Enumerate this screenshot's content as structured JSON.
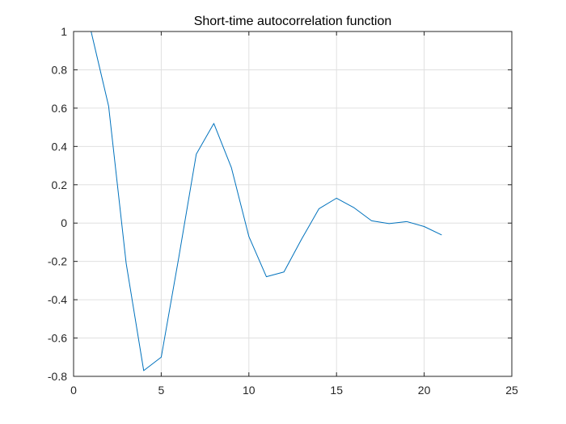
{
  "chart_data": {
    "type": "line",
    "title": "Short-time autocorrelation function",
    "xlabel": "",
    "ylabel": "",
    "xlim": [
      0,
      25
    ],
    "ylim": [
      -0.8,
      1
    ],
    "xticks": [
      0,
      5,
      10,
      15,
      20,
      25
    ],
    "xtick_labels": [
      "0",
      "5",
      "10",
      "15",
      "20",
      "25"
    ],
    "yticks": [
      -0.8,
      -0.6,
      -0.4,
      -0.2,
      0,
      0.2,
      0.4,
      0.6,
      0.8,
      1
    ],
    "ytick_labels": [
      "-0.8",
      "-0.6",
      "-0.4",
      "-0.2",
      "0",
      "0.2",
      "0.4",
      "0.6",
      "0.8",
      "1"
    ],
    "grid": true,
    "box": true,
    "series": [
      {
        "color": "#0072BD",
        "x": [
          1,
          2,
          3,
          4,
          5,
          6,
          7,
          8,
          9,
          10,
          11,
          12,
          13,
          14,
          15,
          16,
          17,
          18,
          19,
          20,
          21
        ],
        "y": [
          1.0,
          0.61,
          -0.21,
          -0.77,
          -0.7,
          -0.18,
          0.36,
          0.52,
          0.29,
          -0.07,
          -0.28,
          -0.255,
          -0.085,
          0.075,
          0.13,
          0.08,
          0.012,
          -0.003,
          0.008,
          -0.018,
          -0.062
        ]
      }
    ]
  }
}
